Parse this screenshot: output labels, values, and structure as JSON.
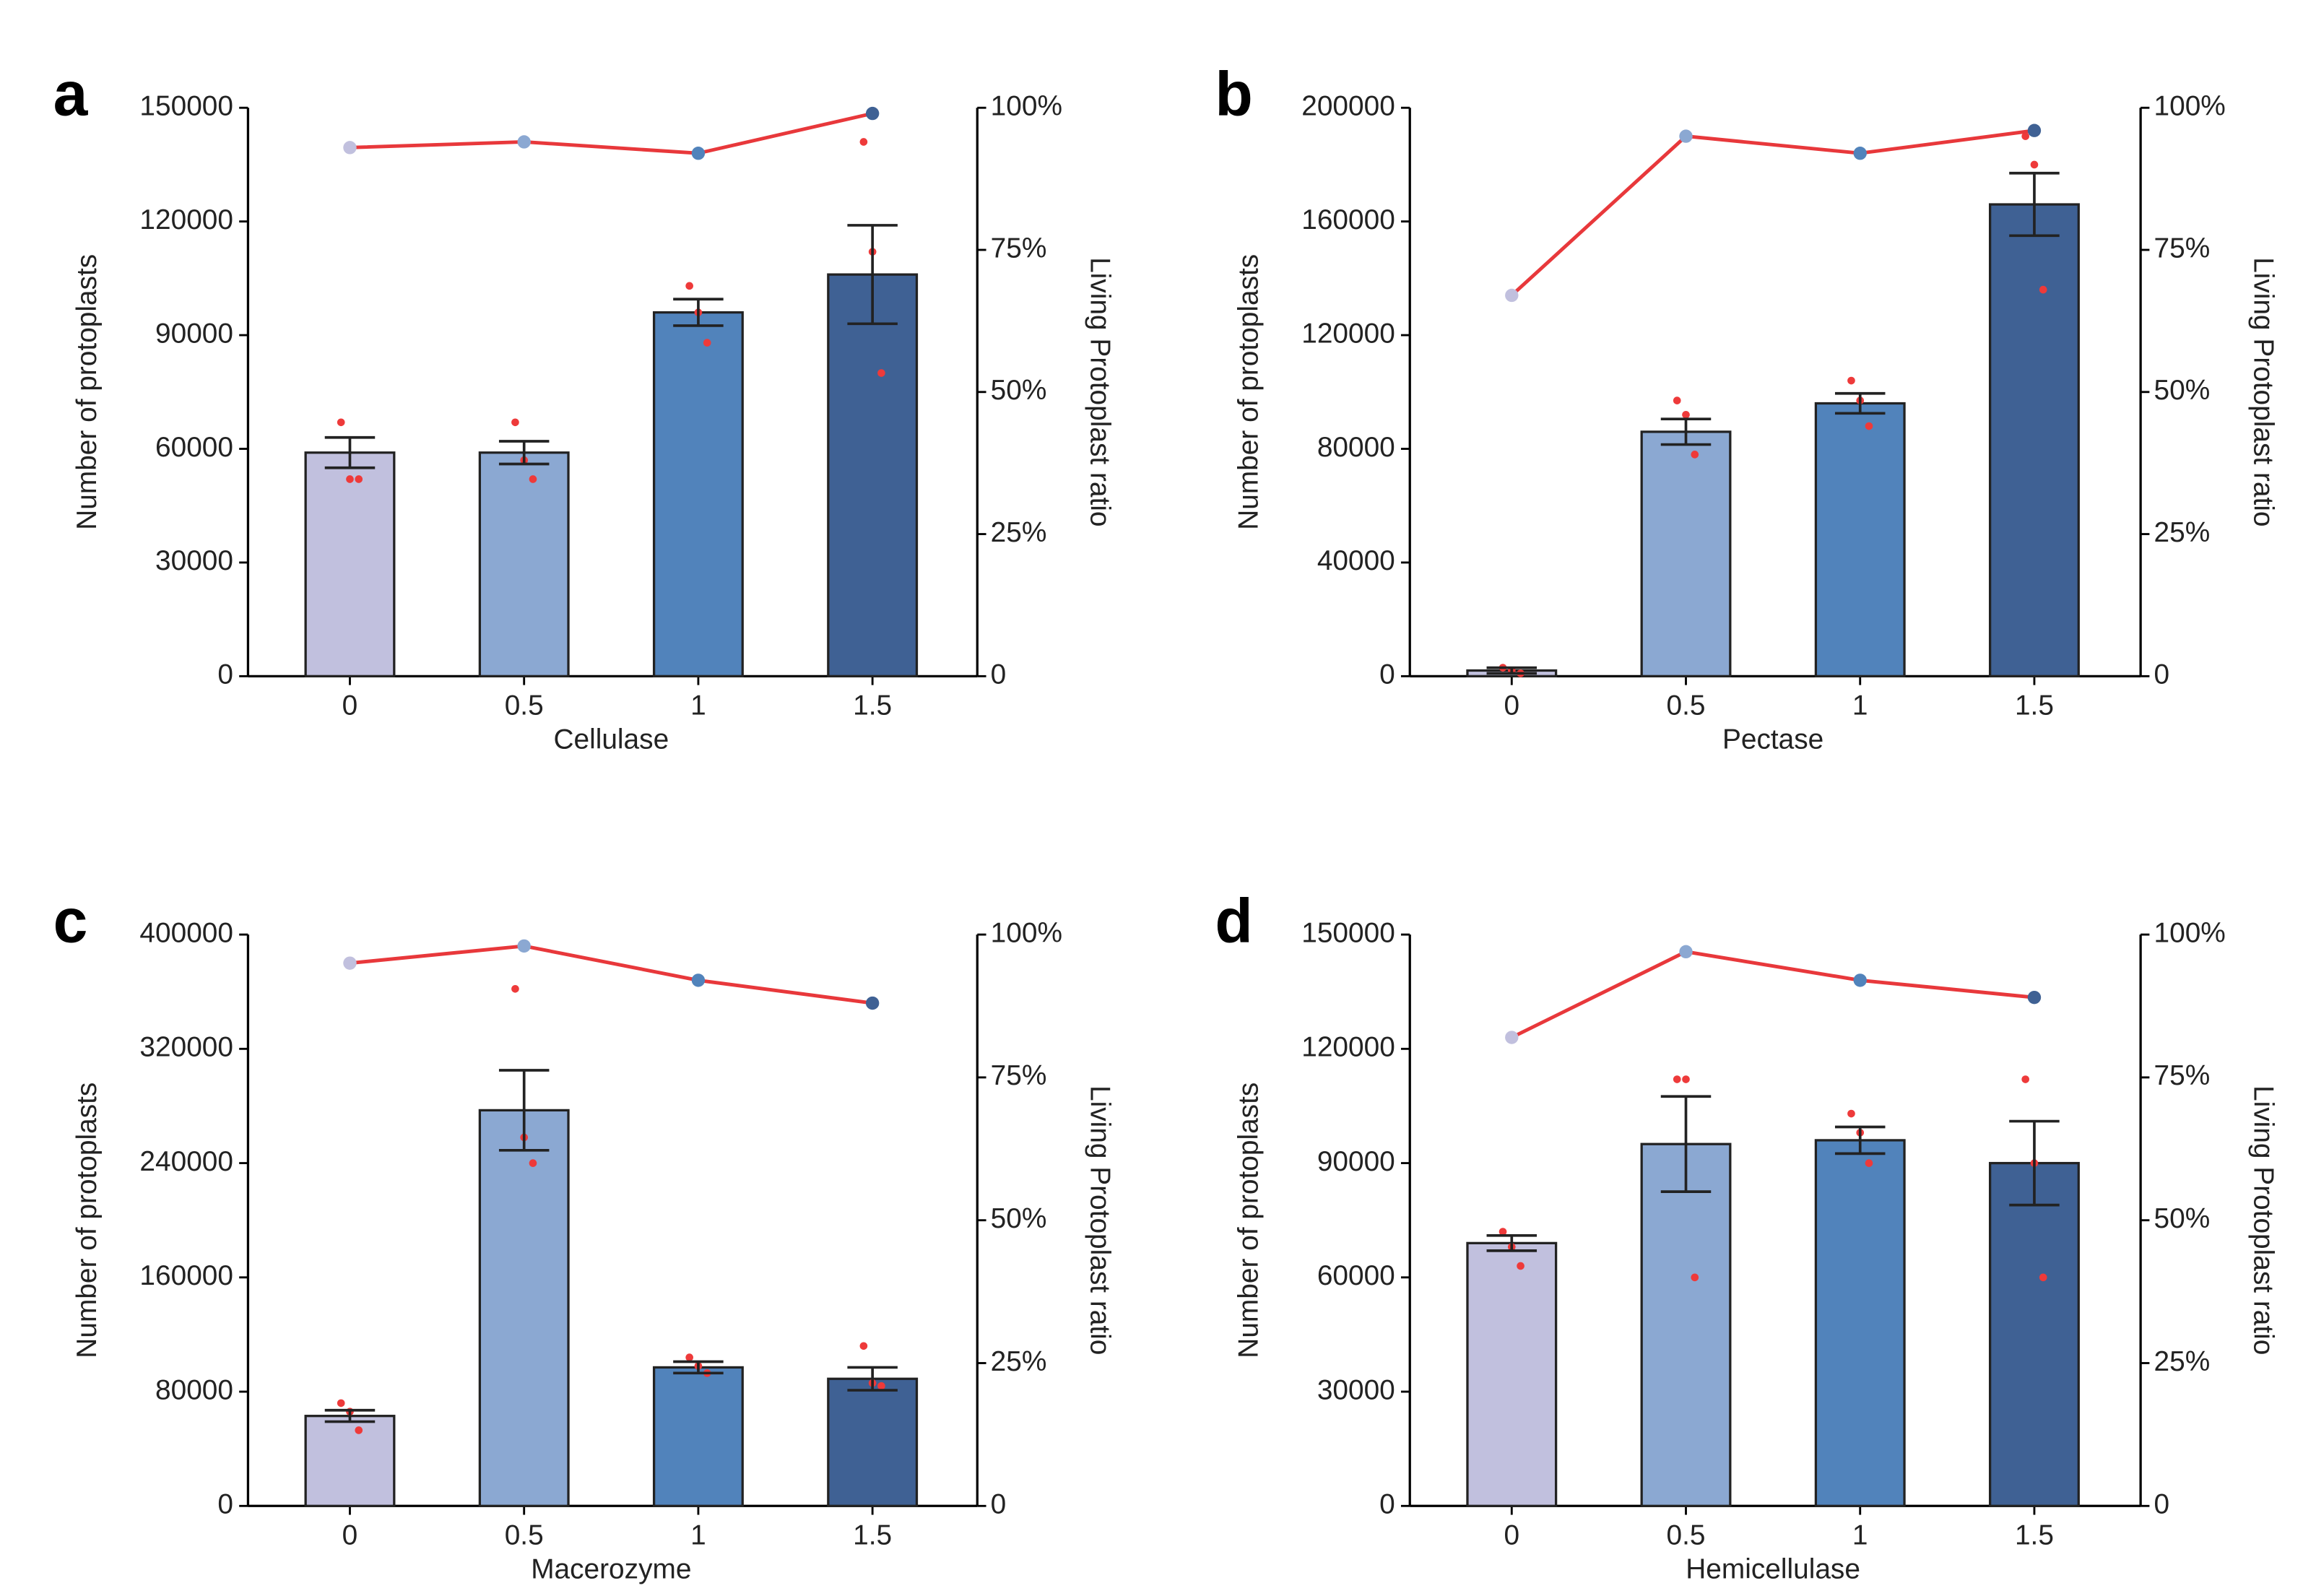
{
  "chart_data": [
    {
      "type": "bar",
      "panel": "a",
      "xlabel": "Cellulase",
      "ylabel": "Number of protoplasts",
      "y2label": "Living Protoplast ratio",
      "categories": [
        "0",
        "0.5",
        "1",
        "1.5"
      ],
      "ylim": [
        0,
        150000
      ],
      "yticks": [
        0,
        30000,
        60000,
        90000,
        120000,
        150000
      ],
      "y2lim": [
        0,
        100
      ],
      "y2ticks": [
        0,
        {
          "value": 25,
          "label": "25%"
        },
        {
          "value": 50,
          "label": "50%"
        },
        {
          "value": 75,
          "label": "75%"
        },
        {
          "value": 100,
          "label": "100%"
        }
      ],
      "series": [
        {
          "type": "bar",
          "colors": [
            "#c1c0de",
            "#8ba8d2",
            "#5183bb",
            "#3f6194"
          ],
          "values": [
            59000,
            59000,
            96000,
            106000
          ],
          "errors": [
            4000,
            3000,
            3500,
            13000
          ],
          "points_color": "#ee3a3a",
          "points": [
            [
              67000,
              52000,
              52000
            ],
            [
              67000,
              57000,
              52000
            ],
            [
              103000,
              96000,
              88000
            ],
            [
              141000,
              112000,
              80000
            ]
          ]
        },
        {
          "type": "line",
          "axis": "y2",
          "color": "#e8383b",
          "marker_colors": [
            "#c1c0de",
            "#8ba8d2",
            "#5183bb",
            "#3f6194"
          ],
          "values": [
            93,
            94,
            92,
            99
          ]
        }
      ]
    },
    {
      "type": "bar",
      "panel": "b",
      "xlabel": "Pectase",
      "ylabel": "Number of protoplasts",
      "y2label": "Living Protoplast ratio",
      "categories": [
        "0",
        "0.5",
        "1",
        "1.5"
      ],
      "ylim": [
        0,
        200000
      ],
      "yticks": [
        0,
        40000,
        80000,
        120000,
        160000,
        200000
      ],
      "y2lim": [
        0,
        100
      ],
      "y2ticks": [
        0,
        {
          "value": 25,
          "label": "25%"
        },
        {
          "value": 50,
          "label": "50%"
        },
        {
          "value": 75,
          "label": "75%"
        },
        {
          "value": 100,
          "label": "100%"
        }
      ],
      "series": [
        {
          "type": "bar",
          "colors": [
            "#c1c0de",
            "#8ba8d2",
            "#5183bb",
            "#3f6194"
          ],
          "values": [
            2000,
            86000,
            96000,
            166000
          ],
          "errors": [
            1000,
            4500,
            3500,
            11000
          ],
          "points_color": "#ee3a3a",
          "points": [
            [
              3000,
              2000,
              1000
            ],
            [
              97000,
              92000,
              78000
            ],
            [
              104000,
              97000,
              88000
            ],
            [
              190000,
              180000,
              136000
            ]
          ]
        },
        {
          "type": "line",
          "axis": "y2",
          "color": "#e8383b",
          "marker_colors": [
            "#c1c0de",
            "#8ba8d2",
            "#5183bb",
            "#3f6194"
          ],
          "values": [
            67,
            95,
            92,
            96
          ]
        }
      ]
    },
    {
      "type": "bar",
      "panel": "c",
      "xlabel": "Macerozyme",
      "ylabel": "Number of protoplasts",
      "y2label": "Living Protoplast ratio",
      "categories": [
        "0",
        "0.5",
        "1",
        "1.5"
      ],
      "ylim": [
        0,
        400000
      ],
      "yticks": [
        0,
        80000,
        160000,
        240000,
        320000,
        400000
      ],
      "y2lim": [
        0,
        100
      ],
      "y2ticks": [
        0,
        {
          "value": 25,
          "label": "25%"
        },
        {
          "value": 50,
          "label": "50%"
        },
        {
          "value": 75,
          "label": "75%"
        },
        {
          "value": 100,
          "label": "100%"
        }
      ],
      "series": [
        {
          "type": "bar",
          "colors": [
            "#c1c0de",
            "#8ba8d2",
            "#5183bb",
            "#3f6194"
          ],
          "values": [
            63000,
            277000,
            97000,
            89000
          ],
          "errors": [
            4000,
            28000,
            4000,
            8000
          ],
          "points_color": "#ee3a3a",
          "points": [
            [
              72000,
              66000,
              53000
            ],
            [
              362000,
              258000,
              240000
            ],
            [
              104000,
              98000,
              93000
            ],
            [
              112000,
              86000,
              84000
            ]
          ]
        },
        {
          "type": "line",
          "axis": "y2",
          "color": "#e8383b",
          "marker_colors": [
            "#c1c0de",
            "#8ba8d2",
            "#5183bb",
            "#3f6194"
          ],
          "values": [
            95,
            98,
            92,
            88
          ]
        }
      ]
    },
    {
      "type": "bar",
      "panel": "d",
      "xlabel": "Hemicellulase",
      "ylabel": "Number of protoplasts",
      "y2label": "Living Protoplast ratio",
      "categories": [
        "0",
        "0.5",
        "1",
        "1.5"
      ],
      "ylim": [
        0,
        150000
      ],
      "yticks": [
        0,
        30000,
        60000,
        90000,
        120000,
        150000
      ],
      "y2lim": [
        0,
        100
      ],
      "y2ticks": [
        0,
        {
          "value": 25,
          "label": "25%"
        },
        {
          "value": 50,
          "label": "50%"
        },
        {
          "value": 75,
          "label": "75%"
        },
        {
          "value": 100,
          "label": "100%"
        }
      ],
      "series": [
        {
          "type": "bar",
          "colors": [
            "#c1c0de",
            "#8ba8d2",
            "#5183bb",
            "#3f6194"
          ],
          "values": [
            69000,
            95000,
            96000,
            90000
          ],
          "errors": [
            2000,
            12500,
            3500,
            11000
          ],
          "points_color": "#ee3a3a",
          "points": [
            [
              72000,
              68000,
              63000
            ],
            [
              112000,
              112000,
              60000
            ],
            [
              103000,
              98000,
              90000
            ],
            [
              112000,
              90000,
              60000
            ]
          ]
        },
        {
          "type": "line",
          "axis": "y2",
          "color": "#e8383b",
          "marker_colors": [
            "#c1c0de",
            "#8ba8d2",
            "#5183bb",
            "#3f6194"
          ],
          "values": [
            82,
            97,
            92,
            89
          ]
        }
      ]
    }
  ]
}
